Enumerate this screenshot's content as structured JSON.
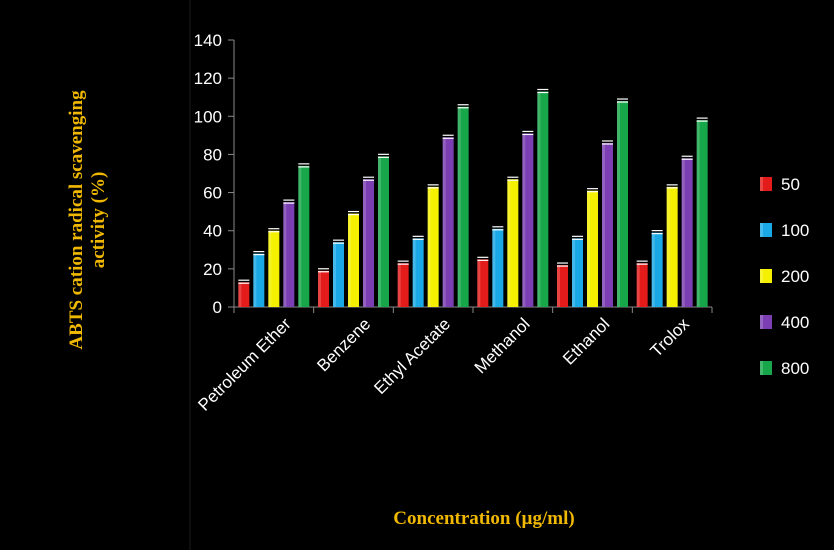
{
  "chart_data": {
    "type": "bar",
    "ylabel_lines": [
      "ABTS cation radical scavenging",
      "activity (%)"
    ],
    "xlabel": "Concentration (µg/ml)",
    "categories": [
      "Petroleum Ether",
      "Benzene",
      "Ethyl Acetate",
      "Methanol",
      "Ethanol",
      "Trolox"
    ],
    "ylim": [
      0,
      140
    ],
    "yticks": [
      "0",
      "20",
      "40",
      "60",
      "80",
      "100",
      "120",
      "140"
    ],
    "legend_position": "right",
    "series": [
      {
        "name": "50",
        "color": "#e31b1b",
        "values": [
          13,
          19,
          23,
          25,
          22,
          23
        ]
      },
      {
        "name": "100",
        "color": "#1aa9e6",
        "values": [
          28,
          34,
          36,
          41,
          36,
          39
        ]
      },
      {
        "name": "200",
        "color": "#f4f000",
        "values": [
          40,
          49,
          63,
          67,
          61,
          63
        ]
      },
      {
        "name": "400",
        "color": "#7b3fb3",
        "values": [
          55,
          67,
          89,
          91,
          86,
          78
        ]
      },
      {
        "name": "800",
        "color": "#18a64a",
        "values": [
          74,
          79,
          105,
          113,
          108,
          98
        ]
      }
    ]
  }
}
